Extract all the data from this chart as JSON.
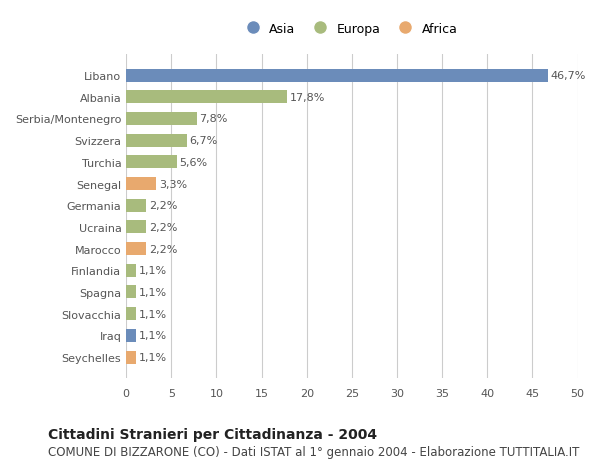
{
  "categories": [
    "Libano",
    "Albania",
    "Serbia/Montenegro",
    "Svizzera",
    "Turchia",
    "Senegal",
    "Germania",
    "Ucraina",
    "Marocco",
    "Finlandia",
    "Spagna",
    "Slovacchia",
    "Iraq",
    "Seychelles"
  ],
  "values": [
    46.7,
    17.8,
    7.8,
    6.7,
    5.6,
    3.3,
    2.2,
    2.2,
    2.2,
    1.1,
    1.1,
    1.1,
    1.1,
    1.1
  ],
  "labels": [
    "46,7%",
    "17,8%",
    "7,8%",
    "6,7%",
    "5,6%",
    "3,3%",
    "2,2%",
    "2,2%",
    "2,2%",
    "1,1%",
    "1,1%",
    "1,1%",
    "1,1%",
    "1,1%"
  ],
  "continent": [
    "Asia",
    "Europa",
    "Europa",
    "Europa",
    "Europa",
    "Africa",
    "Europa",
    "Europa",
    "Africa",
    "Europa",
    "Europa",
    "Europa",
    "Asia",
    "Africa"
  ],
  "colors": {
    "Asia": "#6b8cba",
    "Europa": "#a8bb7d",
    "Africa": "#e8a96e"
  },
  "xlim": [
    0,
    50
  ],
  "xticks": [
    0,
    5,
    10,
    15,
    20,
    25,
    30,
    35,
    40,
    45,
    50
  ],
  "title": "Cittadini Stranieri per Cittadinanza - 2004",
  "subtitle": "COMUNE DI BIZZARONE (CO) - Dati ISTAT al 1° gennaio 2004 - Elaborazione TUTTITALIA.IT",
  "background_color": "#ffffff",
  "grid_color": "#cccccc",
  "bar_height": 0.6,
  "title_fontsize": 10,
  "subtitle_fontsize": 8.5,
  "label_fontsize": 8,
  "tick_fontsize": 8,
  "legend_fontsize": 9,
  "legend_marker_size": 10
}
